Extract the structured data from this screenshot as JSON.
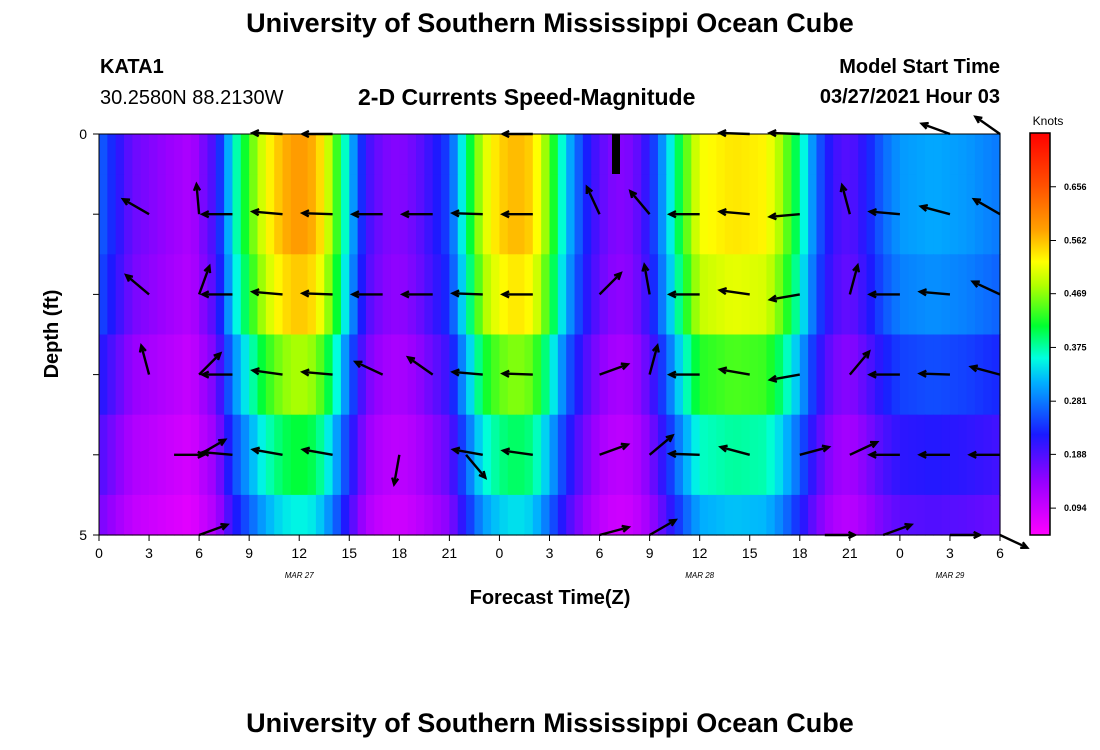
{
  "header": {
    "title": "University of Southern Mississippi Ocean Cube",
    "station": "KATA1",
    "coords": "30.2580N  88.2130W",
    "subtitle": "2-D Currents Speed-Magnitude",
    "model_start_label": "Model Start Time",
    "model_start_value": "03/27/2021 Hour 03"
  },
  "footer": {
    "title": "University of Southern Mississippi Ocean Cube"
  },
  "chart_data": {
    "type": "heatmap",
    "title": "2-D Currents Speed-Magnitude",
    "xlabel": "Forecast Time(Z)",
    "ylabel": "Depth (ft)",
    "x_tick_labels": [
      "0",
      "3",
      "6",
      "9",
      "12",
      "15",
      "18",
      "21",
      "0",
      "3",
      "6",
      "9",
      "12",
      "15",
      "18",
      "21",
      "0",
      "3",
      "6"
    ],
    "x_range_hours": [
      0,
      54
    ],
    "y_range_ft": [
      0,
      5
    ],
    "y_tick_labels": [
      "0",
      "5"
    ],
    "y_minor_ticks": 6,
    "date_labels": [
      {
        "text": "MAR 27",
        "hour": 12
      },
      {
        "text": "MAR 28",
        "hour": 36
      },
      {
        "text": "MAR 29",
        "hour": 51
      }
    ],
    "colorbar": {
      "title": "Knots",
      "range": [
        0.047,
        0.75
      ],
      "tick_values": [
        0.094,
        0.188,
        0.281,
        0.375,
        0.469,
        0.562,
        0.656
      ],
      "tick_labels": [
        "0.094",
        "0.188",
        "0.281",
        "0.375",
        "0.469",
        "0.562",
        "0.656"
      ]
    },
    "speed_profile": [
      {
        "h": 0,
        "v": 0.27
      },
      {
        "h": 1,
        "v": 0.22
      },
      {
        "h": 2,
        "v": 0.17
      },
      {
        "h": 4,
        "v": 0.14
      },
      {
        "h": 5.5,
        "v": 0.12
      },
      {
        "h": 7,
        "v": 0.2
      },
      {
        "h": 8,
        "v": 0.35
      },
      {
        "h": 9,
        "v": 0.44
      },
      {
        "h": 10,
        "v": 0.52
      },
      {
        "h": 11,
        "v": 0.57
      },
      {
        "h": 12,
        "v": 0.59
      },
      {
        "h": 13,
        "v": 0.57
      },
      {
        "h": 14,
        "v": 0.47
      },
      {
        "h": 15,
        "v": 0.33
      },
      {
        "h": 16,
        "v": 0.2
      },
      {
        "h": 17,
        "v": 0.16
      },
      {
        "h": 18,
        "v": 0.15
      },
      {
        "h": 19,
        "v": 0.17
      },
      {
        "h": 20,
        "v": 0.21
      },
      {
        "h": 21,
        "v": 0.25
      },
      {
        "h": 22,
        "v": 0.38
      },
      {
        "h": 23,
        "v": 0.5
      },
      {
        "h": 24,
        "v": 0.55
      },
      {
        "h": 25,
        "v": 0.57
      },
      {
        "h": 26,
        "v": 0.55
      },
      {
        "h": 27,
        "v": 0.45
      },
      {
        "h": 28,
        "v": 0.33
      },
      {
        "h": 29,
        "v": 0.24
      },
      {
        "h": 30,
        "v": 0.18
      },
      {
        "h": 31,
        "v": 0.15
      },
      {
        "h": 32,
        "v": 0.16
      },
      {
        "h": 33,
        "v": 0.22
      },
      {
        "h": 34,
        "v": 0.32
      },
      {
        "h": 35,
        "v": 0.43
      },
      {
        "h": 36,
        "v": 0.52
      },
      {
        "h": 38,
        "v": 0.54
      },
      {
        "h": 40,
        "v": 0.53
      },
      {
        "h": 41,
        "v": 0.47
      },
      {
        "h": 42,
        "v": 0.38
      },
      {
        "h": 43,
        "v": 0.27
      },
      {
        "h": 44,
        "v": 0.2
      },
      {
        "h": 45,
        "v": 0.18
      },
      {
        "h": 46,
        "v": 0.22
      },
      {
        "h": 47,
        "v": 0.27
      },
      {
        "h": 48,
        "v": 0.3
      },
      {
        "h": 50,
        "v": 0.31
      },
      {
        "h": 52,
        "v": 0.3
      },
      {
        "h": 54,
        "v": 0.28
      }
    ],
    "depth_factors": [
      1.0,
      1.0,
      0.95,
      0.82,
      0.7,
      0.6
    ],
    "vectors": [
      {
        "h": 3,
        "d": 1,
        "deg": 150
      },
      {
        "h": 6,
        "d": 1,
        "deg": 95
      },
      {
        "h": 8,
        "d": 1,
        "deg": 180
      },
      {
        "h": 11,
        "d": 1,
        "deg": 175
      },
      {
        "h": 14,
        "d": 1,
        "deg": 178
      },
      {
        "h": 17,
        "d": 1,
        "deg": 180
      },
      {
        "h": 20,
        "d": 1,
        "deg": 180
      },
      {
        "h": 23,
        "d": 1,
        "deg": 178
      },
      {
        "h": 26,
        "d": 1,
        "deg": 180
      },
      {
        "h": 30,
        "d": 1,
        "deg": 115
      },
      {
        "h": 33,
        "d": 1,
        "deg": 130
      },
      {
        "h": 36,
        "d": 1,
        "deg": 180
      },
      {
        "h": 39,
        "d": 1,
        "deg": 175
      },
      {
        "h": 42,
        "d": 1,
        "deg": 185
      },
      {
        "h": 45,
        "d": 1,
        "deg": 105
      },
      {
        "h": 48,
        "d": 1,
        "deg": 175
      },
      {
        "h": 51,
        "d": 1,
        "deg": 165
      },
      {
        "h": 54,
        "d": 1,
        "deg": 150
      },
      {
        "h": 3,
        "d": 2,
        "deg": 140
      },
      {
        "h": 6,
        "d": 2,
        "deg": 70
      },
      {
        "h": 8,
        "d": 2,
        "deg": 180
      },
      {
        "h": 11,
        "d": 2,
        "deg": 175
      },
      {
        "h": 14,
        "d": 2,
        "deg": 178
      },
      {
        "h": 17,
        "d": 2,
        "deg": 180
      },
      {
        "h": 20,
        "d": 2,
        "deg": 180
      },
      {
        "h": 23,
        "d": 2,
        "deg": 178
      },
      {
        "h": 26,
        "d": 2,
        "deg": 180
      },
      {
        "h": 30,
        "d": 2,
        "deg": 45
      },
      {
        "h": 33,
        "d": 2,
        "deg": 100
      },
      {
        "h": 36,
        "d": 2,
        "deg": 180
      },
      {
        "h": 39,
        "d": 2,
        "deg": 172
      },
      {
        "h": 42,
        "d": 2,
        "deg": 190
      },
      {
        "h": 45,
        "d": 2,
        "deg": 75
      },
      {
        "h": 48,
        "d": 2,
        "deg": 180
      },
      {
        "h": 51,
        "d": 2,
        "deg": 175
      },
      {
        "h": 54,
        "d": 2,
        "deg": 155
      },
      {
        "h": 3,
        "d": 3,
        "deg": 105
      },
      {
        "h": 6,
        "d": 3,
        "deg": 45
      },
      {
        "h": 8,
        "d": 3,
        "deg": 180
      },
      {
        "h": 11,
        "d": 3,
        "deg": 172
      },
      {
        "h": 14,
        "d": 3,
        "deg": 175
      },
      {
        "h": 17,
        "d": 3,
        "deg": 155
      },
      {
        "h": 20,
        "d": 3,
        "deg": 145
      },
      {
        "h": 23,
        "d": 3,
        "deg": 175
      },
      {
        "h": 26,
        "d": 3,
        "deg": 178
      },
      {
        "h": 30,
        "d": 3,
        "deg": 20
      },
      {
        "h": 33,
        "d": 3,
        "deg": 75
      },
      {
        "h": 36,
        "d": 3,
        "deg": 180
      },
      {
        "h": 39,
        "d": 3,
        "deg": 170
      },
      {
        "h": 42,
        "d": 3,
        "deg": 190
      },
      {
        "h": 45,
        "d": 3,
        "deg": 50
      },
      {
        "h": 48,
        "d": 3,
        "deg": 180
      },
      {
        "h": 51,
        "d": 3,
        "deg": 178
      },
      {
        "h": 54,
        "d": 3,
        "deg": 165
      },
      {
        "h": 4.5,
        "d": 4,
        "deg": 0
      },
      {
        "h": 6,
        "d": 4,
        "deg": 30
      },
      {
        "h": 8,
        "d": 4,
        "deg": 175
      },
      {
        "h": 11,
        "d": 4,
        "deg": 170
      },
      {
        "h": 14,
        "d": 4,
        "deg": 170
      },
      {
        "h": 18,
        "d": 4,
        "deg": 260
      },
      {
        "h": 22,
        "d": 4,
        "deg": 310
      },
      {
        "h": 23,
        "d": 4,
        "deg": 170
      },
      {
        "h": 26,
        "d": 4,
        "deg": 172
      },
      {
        "h": 30,
        "d": 4,
        "deg": 20
      },
      {
        "h": 33,
        "d": 4,
        "deg": 40
      },
      {
        "h": 36,
        "d": 4,
        "deg": 178
      },
      {
        "h": 39,
        "d": 4,
        "deg": 165
      },
      {
        "h": 42,
        "d": 4,
        "deg": 15
      },
      {
        "h": 45,
        "d": 4,
        "deg": 25
      },
      {
        "h": 48,
        "d": 4,
        "deg": 180
      },
      {
        "h": 51,
        "d": 4,
        "deg": 180
      },
      {
        "h": 54,
        "d": 4,
        "deg": 180
      },
      {
        "h": 6,
        "d": 5,
        "deg": 20
      },
      {
        "h": 30,
        "d": 5,
        "deg": 15
      },
      {
        "h": 33,
        "d": 5,
        "deg": 30
      },
      {
        "h": 43.5,
        "d": 5,
        "deg": 0
      },
      {
        "h": 47,
        "d": 5,
        "deg": 20
      },
      {
        "h": 51,
        "d": 5,
        "deg": 0
      },
      {
        "h": 54,
        "d": 5,
        "deg": 335
      },
      {
        "h": 11,
        "d": 0,
        "deg": 178
      },
      {
        "h": 14,
        "d": 0,
        "deg": 180
      },
      {
        "h": 26,
        "d": 0,
        "deg": 180
      },
      {
        "h": 39,
        "d": 0,
        "deg": 178
      },
      {
        "h": 42,
        "d": 0,
        "deg": 178
      },
      {
        "h": 51,
        "d": 0,
        "deg": 160
      },
      {
        "h": 54,
        "d": 0,
        "deg": 145
      }
    ]
  }
}
